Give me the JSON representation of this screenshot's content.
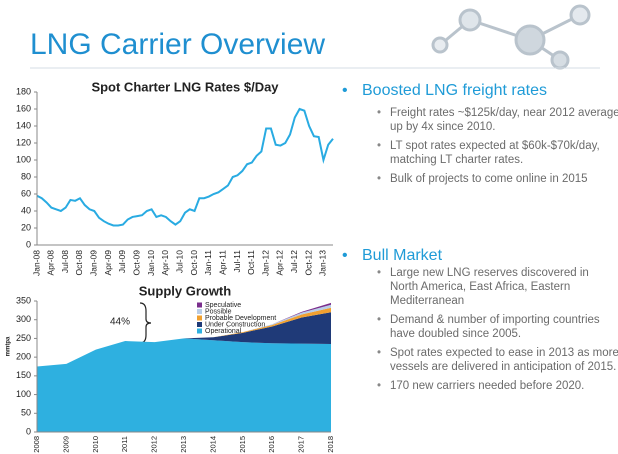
{
  "title": "LNG Carrier Overview",
  "chart_data": [
    {
      "type": "line",
      "title": "Spot Charter LNG Rates $/Day",
      "color": "#29abe2",
      "categories": [
        "Jan-08",
        null,
        null,
        "Apr-08",
        null,
        null,
        "Jul-08",
        null,
        null,
        "Oct-08",
        null,
        null,
        "Jan-09",
        null,
        null,
        "Apr-09",
        null,
        null,
        "Jul-09",
        null,
        null,
        "Oct-09",
        null,
        null,
        "Jan-10",
        null,
        null,
        "Apr-10",
        null,
        null,
        "Jul-10",
        null,
        null,
        "Oct-10",
        null,
        null,
        "Jan-11",
        null,
        null,
        "Apr-11",
        null,
        null,
        "Jul-11",
        null,
        null,
        "Oct-11",
        null,
        null,
        "Jan-12",
        null,
        null,
        "Apr-12",
        null,
        null,
        "Jul-12",
        null,
        null,
        "Oct-12",
        null,
        null,
        "Jan-13",
        null,
        null
      ],
      "values": [
        58,
        55,
        50,
        44,
        42,
        40,
        44,
        53,
        52,
        55,
        47,
        42,
        40,
        32,
        28,
        25,
        23,
        23,
        24,
        30,
        33,
        34,
        35,
        40,
        42,
        33,
        35,
        33,
        28,
        24,
        28,
        38,
        42,
        40,
        55,
        55,
        57,
        60,
        62,
        66,
        70,
        80,
        82,
        87,
        95,
        97,
        105,
        110,
        137,
        137,
        118,
        117,
        120,
        130,
        150,
        160,
        158,
        140,
        128,
        127,
        100,
        118,
        125
      ],
      "ylim": [
        0,
        180
      ],
      "yticks": [
        0,
        20,
        40,
        60,
        80,
        100,
        120,
        140,
        160,
        180
      ],
      "grid": false
    },
    {
      "type": "stacked-area",
      "title": "Supply Growth",
      "y_label": "mmtpa",
      "annotation": "44%",
      "categories": [
        "2008",
        "2009",
        "2010",
        "2011",
        "2012",
        "2013",
        "2014",
        "2015",
        "2016",
        "2017",
        "2018"
      ],
      "series": [
        {
          "name": "Operational",
          "color": "#2eb0e0",
          "values": [
            175,
            182,
            220,
            243,
            240,
            250,
            245,
            240,
            237,
            236,
            235
          ]
        },
        {
          "name": "Under Construction",
          "color": "#1f3a78",
          "values": [
            0,
            0,
            0,
            0,
            0,
            0,
            8,
            25,
            45,
            70,
            85
          ]
        },
        {
          "name": "Probable Development",
          "color": "#f0a030",
          "values": [
            0,
            0,
            0,
            0,
            0,
            0,
            0,
            2,
            4,
            8,
            12
          ]
        },
        {
          "name": "Possible",
          "color": "#b8cde8",
          "values": [
            0,
            0,
            0,
            0,
            0,
            0,
            0,
            0,
            2,
            5,
            8
          ]
        },
        {
          "name": "Speculative",
          "color": "#7a2e8c",
          "values": [
            0,
            0,
            0,
            0,
            0,
            0,
            0,
            0,
            0,
            2,
            5
          ]
        }
      ],
      "ylim": [
        0,
        350
      ],
      "yticks": [
        0,
        50,
        100,
        150,
        200,
        250,
        300,
        350
      ],
      "legend": "top-right"
    }
  ],
  "sections": [
    {
      "heading": "Boosted  LNG freight rates",
      "items": [
        "Freight rates ~$125k/day,  near 2012 average, up by 4x since 2010.",
        "LT spot rates expected  at $60k-$70k/day, matching LT charter rates.",
        "Bulk of projects to come online in 2015"
      ]
    },
    {
      "heading": "Bull Market",
      "items": [
        "Large new LNG reserves discovered in North America, East Africa,  Eastern Mediterranean",
        "Demand & number of importing countries have doubled since 2005.",
        "Spot rates expected  to ease in 2013 as more vessels are delivered in anticipation of 2015.",
        "170 new carriers needed before 2020."
      ]
    }
  ]
}
